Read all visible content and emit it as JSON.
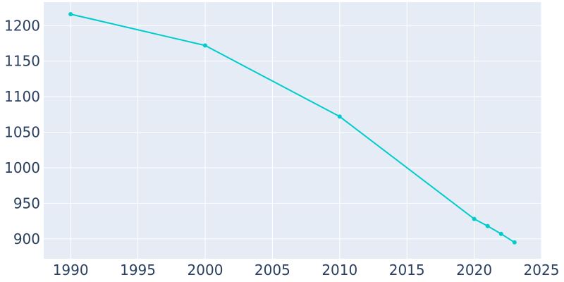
{
  "chart_data": {
    "type": "line",
    "title": "",
    "xlabel": "",
    "ylabel": "",
    "x": [
      1990,
      2000,
      2010,
      2020,
      2021,
      2022,
      2023
    ],
    "series": [
      {
        "values": [
          1216,
          1172,
          1072,
          928,
          918,
          907,
          895
        ],
        "color": "#00cccc"
      }
    ],
    "xlim": [
      1988,
      2025
    ],
    "ylim": [
      872,
      1233
    ],
    "xticks": [
      1990,
      1995,
      2000,
      2005,
      2010,
      2015,
      2020,
      2025
    ],
    "yticks": [
      900,
      950,
      1000,
      1050,
      1100,
      1150,
      1200
    ],
    "grid": true,
    "colors": {
      "plot_bg": "#e5ecf6",
      "grid": "#ffffff",
      "tick_text": "#2a3f5f",
      "line": "#00cccc"
    }
  }
}
